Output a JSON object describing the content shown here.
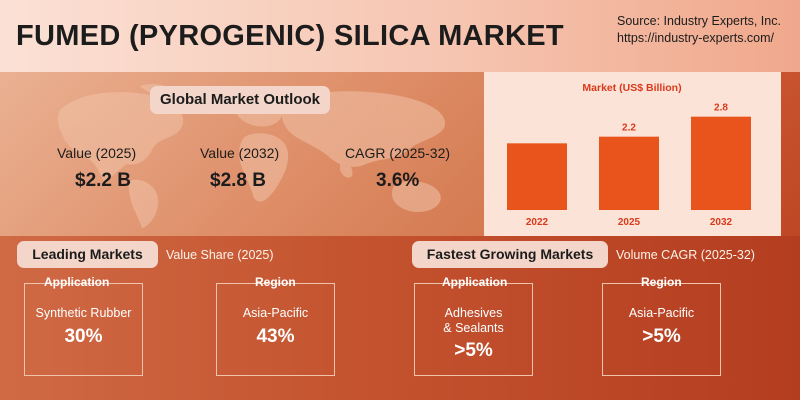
{
  "header": {
    "title": "FUMED (PYROGENIC) SILICA MARKET",
    "source_line1": "Source: Industry Experts, Inc.",
    "source_line2": "https://industry-experts.com/"
  },
  "outlook": {
    "label": "Global Market Outlook",
    "metrics": [
      {
        "label": "Value (2025)",
        "value": "$2.2 B"
      },
      {
        "label": "Value (2032)",
        "value": "$2.8 B"
      },
      {
        "label": "CAGR (2025-32)",
        "value": "3.6%"
      }
    ]
  },
  "chart_data": {
    "type": "bar",
    "title": "Market (US$ Billion)",
    "categories": [
      "2022",
      "2025",
      "2032"
    ],
    "values": [
      2.0,
      2.2,
      2.8
    ],
    "data_labels": [
      "",
      "2.2",
      "2.8"
    ],
    "ylim": [
      0,
      3.3
    ],
    "bar_color": "#e8541b",
    "grid": false,
    "legend": "none"
  },
  "leading": {
    "label": "Leading Markets",
    "subtitle": "Value Share (2025)",
    "boxes": [
      {
        "label": "Application",
        "name": "Synthetic Rubber",
        "value": "30%"
      },
      {
        "label": "Region",
        "name": "Asia-Pacific",
        "value": "43%"
      }
    ]
  },
  "fastest": {
    "label": "Fastest Growing Markets",
    "subtitle": "Volume CAGR (2025-32)",
    "boxes": [
      {
        "label": "Application",
        "name_line1": "Adhesives",
        "name_line2": "& Sealants",
        "value": ">5%"
      },
      {
        "label": "Region",
        "name": "Asia-Pacific",
        "value": ">5%"
      }
    ]
  },
  "colors": {
    "accent": "#e8541b",
    "title_red": "#d93a1a"
  }
}
